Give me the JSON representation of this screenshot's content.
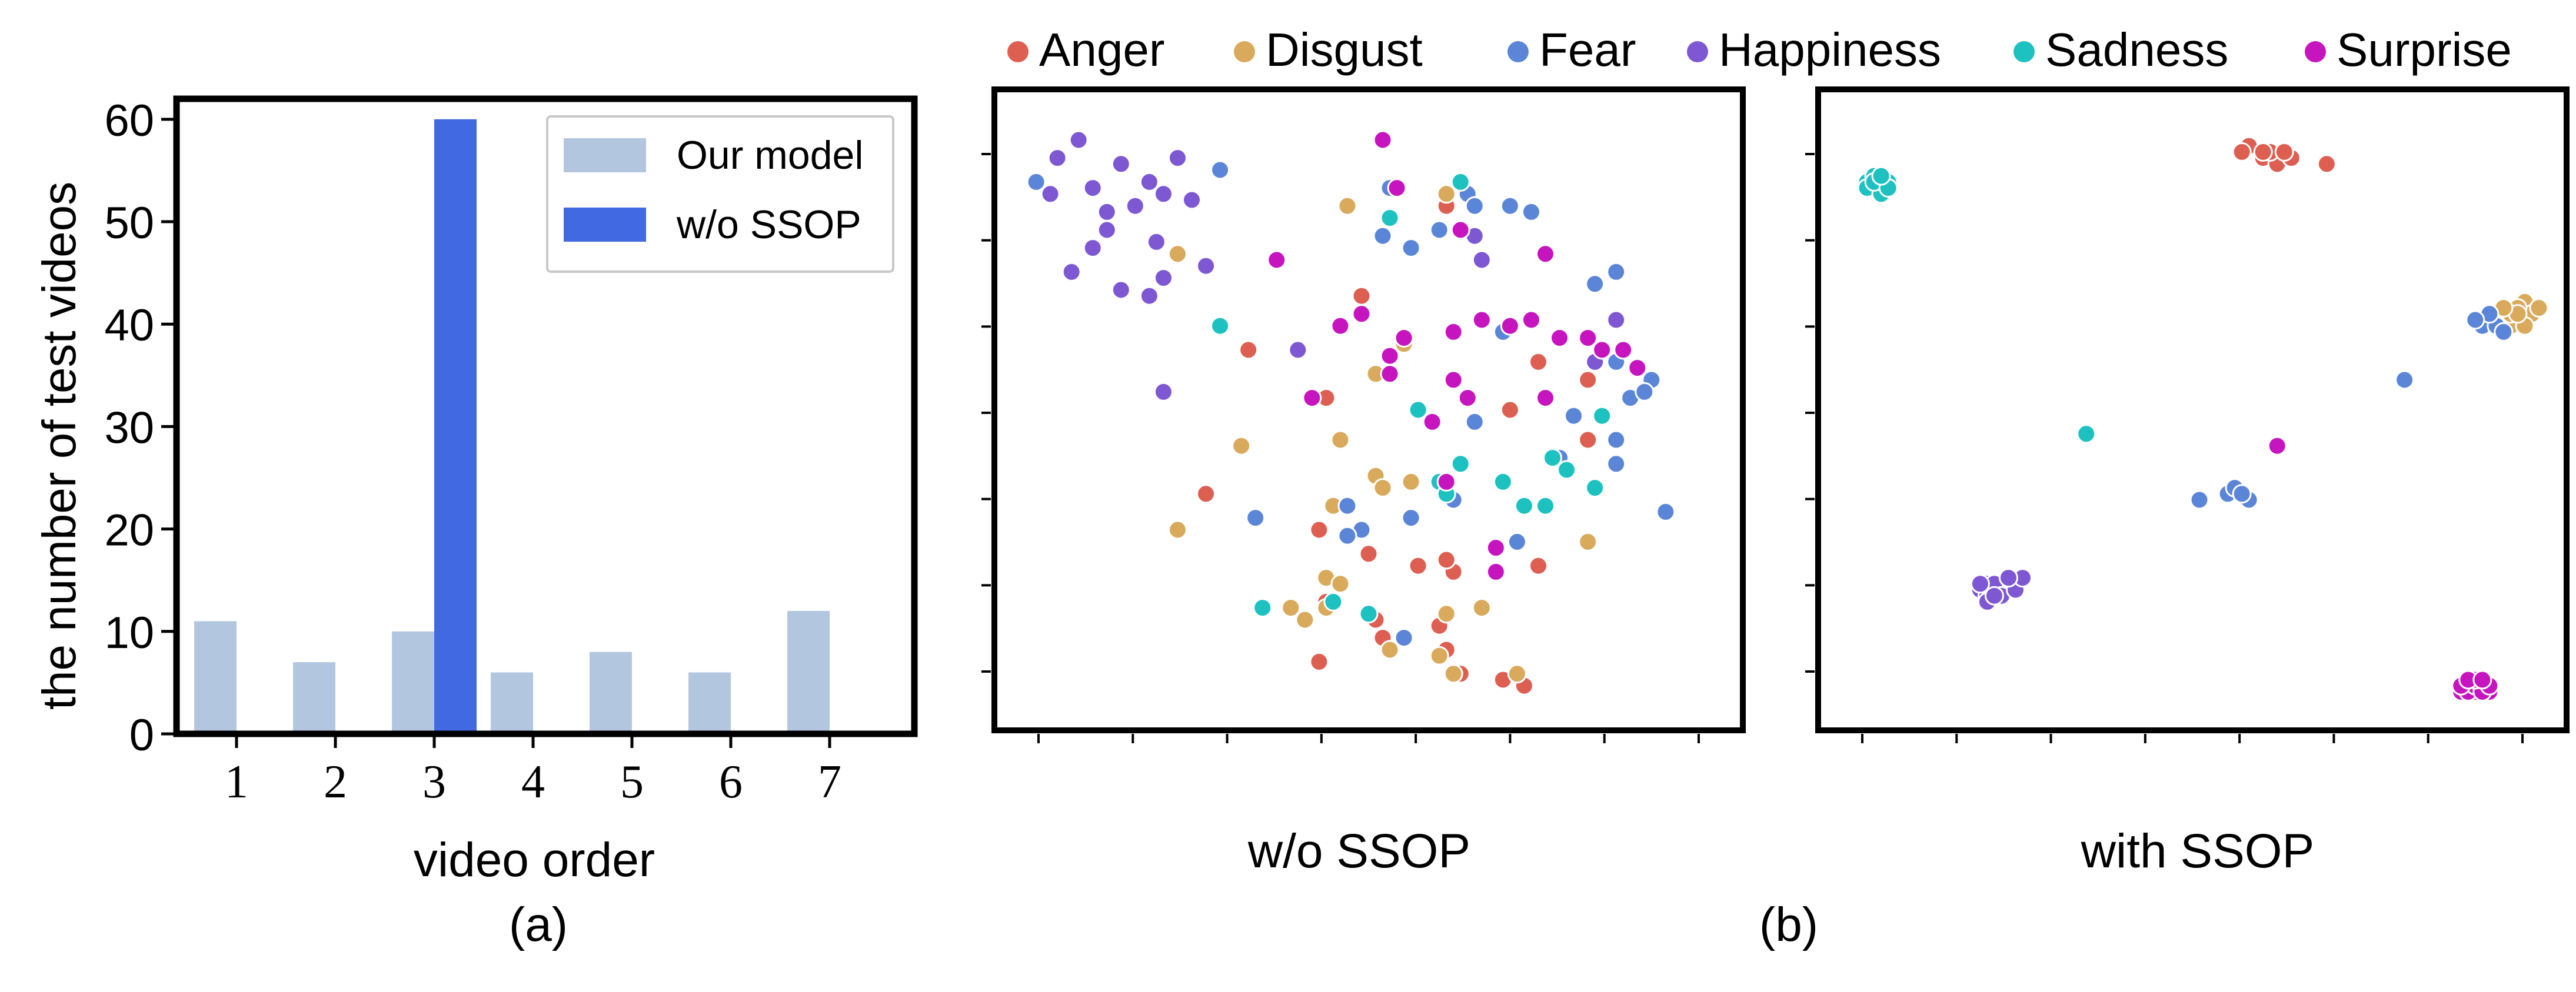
{
  "emotion_legend": {
    "items": [
      {
        "name": "Anger",
        "color": "#DD5F52"
      },
      {
        "name": "Disgust",
        "color": "#D9AA5C"
      },
      {
        "name": "Fear",
        "color": "#5B86D8"
      },
      {
        "name": "Happiness",
        "color": "#7E58D3"
      },
      {
        "name": "Sadness",
        "color": "#1DC2C0"
      },
      {
        "name": "Surprise",
        "color": "#C615BF"
      }
    ]
  },
  "captions": {
    "a": "(a)",
    "b": "(b)"
  },
  "chart_data": [
    {
      "type": "bar",
      "xlabel": "video order",
      "ylabel": "the number of test videos",
      "categories": [
        "1",
        "2",
        "3",
        "4",
        "5",
        "6",
        "7"
      ],
      "ylim": [
        0,
        62
      ],
      "yticks": [
        0,
        10,
        20,
        30,
        40,
        50,
        60
      ],
      "grid": false,
      "legend_position": "top-right",
      "series": [
        {
          "name": "Our model",
          "color": "#B3C6E0",
          "values": [
            11,
            7,
            10,
            6,
            8,
            6,
            12
          ]
        },
        {
          "name": "w/o SSOP",
          "color": "#4169E1",
          "values": [
            0,
            0,
            60,
            0,
            0,
            0,
            0
          ]
        }
      ]
    },
    {
      "type": "scatter",
      "xlabel": "w/o SSOP",
      "xlim": [
        0,
        100
      ],
      "ylim": [
        0,
        100
      ],
      "grid": false,
      "series": [
        {
          "name": "Anger",
          "color": "#DD5F52",
          "points": [
            [
              61,
              84
            ],
            [
              49,
              69
            ],
            [
              33,
              60
            ],
            [
              44,
              52
            ],
            [
              74,
              58
            ],
            [
              81,
              55
            ],
            [
              70,
              50
            ],
            [
              55,
              61
            ],
            [
              27,
              36
            ],
            [
              43,
              30
            ],
            [
              50,
              26
            ],
            [
              57,
              24
            ],
            [
              62,
              23
            ],
            [
              44,
              18
            ],
            [
              51,
              15
            ],
            [
              60,
              14
            ],
            [
              43,
              8
            ],
            [
              52,
              12
            ],
            [
              61,
              10
            ],
            [
              63,
              6
            ],
            [
              69,
              5
            ],
            [
              71,
              6
            ],
            [
              72,
              4
            ],
            [
              81,
              45
            ],
            [
              74,
              24
            ],
            [
              61,
              25
            ]
          ]
        },
        {
          "name": "Disgust",
          "color": "#D9AA5C",
          "points": [
            [
              47,
              84
            ],
            [
              61,
              86
            ],
            [
              23,
              76
            ],
            [
              55,
              61
            ],
            [
              51,
              56
            ],
            [
              32,
              44
            ],
            [
              46,
              45
            ],
            [
              51,
              39
            ],
            [
              56,
              38
            ],
            [
              45,
              34
            ],
            [
              52,
              37
            ],
            [
              23,
              30
            ],
            [
              44,
              22
            ],
            [
              46,
              21
            ],
            [
              44,
              17
            ],
            [
              39,
              17
            ],
            [
              61,
              16
            ],
            [
              41,
              15
            ],
            [
              53,
              10
            ],
            [
              60,
              9
            ],
            [
              62,
              6
            ],
            [
              71,
              6
            ],
            [
              81,
              28
            ],
            [
              66,
              17
            ]
          ]
        },
        {
          "name": "Fear",
          "color": "#5B86D8",
          "points": [
            [
              3,
              88
            ],
            [
              29,
              90
            ],
            [
              53,
              87
            ],
            [
              64,
              86
            ],
            [
              70,
              84
            ],
            [
              73,
              83
            ],
            [
              52,
              79
            ],
            [
              56,
              77
            ],
            [
              60,
              80
            ],
            [
              65,
              84
            ],
            [
              85,
              73
            ],
            [
              82,
              71
            ],
            [
              69,
              63
            ],
            [
              65,
              48
            ],
            [
              79,
              49
            ],
            [
              87,
              52
            ],
            [
              90,
              55
            ],
            [
              85,
              45
            ],
            [
              92,
              33
            ],
            [
              34,
              32
            ],
            [
              47,
              34
            ],
            [
              56,
              32
            ],
            [
              62,
              35
            ],
            [
              77,
              42
            ],
            [
              85,
              41
            ],
            [
              49,
              30
            ],
            [
              71,
              28
            ],
            [
              55,
              12
            ],
            [
              89,
              53
            ],
            [
              85,
              58
            ],
            [
              47,
              29
            ]
          ]
        },
        {
          "name": "Happiness",
          "color": "#7E58D3",
          "points": [
            [
              5,
              86
            ],
            [
              6,
              92
            ],
            [
              9,
              95
            ],
            [
              11,
              87
            ],
            [
              15,
              91
            ],
            [
              13,
              83
            ],
            [
              19,
              88
            ],
            [
              21,
              86
            ],
            [
              13,
              80
            ],
            [
              17,
              84
            ],
            [
              23,
              92
            ],
            [
              25,
              85
            ],
            [
              20,
              78
            ],
            [
              11,
              77
            ],
            [
              8,
              73
            ],
            [
              15,
              70
            ],
            [
              19,
              69
            ],
            [
              27,
              74
            ],
            [
              21,
              72
            ],
            [
              40,
              60
            ],
            [
              21,
              53
            ],
            [
              82,
              58
            ],
            [
              85,
              65
            ],
            [
              65,
              79
            ],
            [
              66,
              75
            ]
          ]
        },
        {
          "name": "Sadness",
          "color": "#1DC2C0",
          "points": [
            [
              63,
              88
            ],
            [
              53,
              82
            ],
            [
              29,
              64
            ],
            [
              57,
              50
            ],
            [
              83,
              49
            ],
            [
              76,
              42
            ],
            [
              60,
              38
            ],
            [
              63,
              41
            ],
            [
              69,
              38
            ],
            [
              72,
              34
            ],
            [
              75,
              34
            ],
            [
              78,
              40
            ],
            [
              82,
              37
            ],
            [
              61,
              36
            ],
            [
              35,
              17
            ],
            [
              45,
              18
            ],
            [
              50,
              16
            ]
          ]
        },
        {
          "name": "Surprise",
          "color": "#C615BF",
          "points": [
            [
              52,
              95
            ],
            [
              54,
              87
            ],
            [
              37,
              75
            ],
            [
              63,
              80
            ],
            [
              75,
              76
            ],
            [
              49,
              66
            ],
            [
              46,
              64
            ],
            [
              55,
              62
            ],
            [
              53,
              59
            ],
            [
              62,
              63
            ],
            [
              66,
              65
            ],
            [
              70,
              64
            ],
            [
              73,
              65
            ],
            [
              77,
              62
            ],
            [
              81,
              62
            ],
            [
              83,
              60
            ],
            [
              86,
              60
            ],
            [
              88,
              57
            ],
            [
              62,
              55
            ],
            [
              64,
              52
            ],
            [
              53,
              56
            ],
            [
              42,
              52
            ],
            [
              59,
              48
            ],
            [
              75,
              52
            ],
            [
              61,
              38
            ],
            [
              68,
              27
            ],
            [
              68,
              23
            ]
          ]
        }
      ]
    },
    {
      "type": "scatter",
      "xlabel": "with SSOP",
      "xlim": [
        0,
        100
      ],
      "ylim": [
        0,
        100
      ],
      "grid": false,
      "series": [
        {
          "name": "Anger",
          "color": "#DD5F52",
          "points": [
            [
              58,
              94
            ],
            [
              60,
              92
            ],
            [
              62,
              91
            ],
            [
              64,
              92
            ],
            [
              61,
              93
            ],
            [
              57,
              93
            ],
            [
              60,
              93
            ],
            [
              63,
              93
            ],
            [
              69,
              91
            ]
          ]
        },
        {
          "name": "Disgust",
          "color": "#D9AA5C",
          "points": [
            [
              94,
              66
            ],
            [
              96,
              65
            ],
            [
              97,
              68
            ],
            [
              95,
              64
            ],
            [
              98,
              66
            ],
            [
              93,
              66
            ],
            [
              96,
              67
            ],
            [
              97,
              64
            ],
            [
              95,
              66
            ],
            [
              99,
              67
            ],
            [
              96,
              66
            ],
            [
              94,
              67
            ]
          ]
        },
        {
          "name": "Fear",
          "color": "#5B86D8",
          "points": [
            [
              91,
              64
            ],
            [
              93,
              64
            ],
            [
              92,
              66
            ],
            [
              90,
              65
            ],
            [
              94,
              63
            ],
            [
              80,
              55
            ],
            [
              55,
              36
            ],
            [
              56,
              37
            ],
            [
              58,
              35
            ],
            [
              57,
              36
            ],
            [
              51,
              35
            ]
          ]
        },
        {
          "name": "Happiness",
          "color": "#7E58D3",
          "points": [
            [
              20,
              20
            ],
            [
              21,
              19
            ],
            [
              22,
              20
            ],
            [
              23,
              21
            ],
            [
              24,
              20
            ],
            [
              25,
              21
            ],
            [
              21,
              21
            ],
            [
              22,
              21
            ],
            [
              23,
              19
            ],
            [
              25,
              20
            ],
            [
              26,
              22
            ],
            [
              24,
              22
            ],
            [
              21,
              18
            ],
            [
              20,
              21
            ],
            [
              22,
              19
            ]
          ]
        },
        {
          "name": "Sadness",
          "color": "#1DC2C0",
          "points": [
            [
              4,
              88
            ],
            [
              5,
              87
            ],
            [
              6,
              88
            ],
            [
              5,
              89
            ],
            [
              7,
              88
            ],
            [
              4,
              87
            ],
            [
              6,
              86
            ],
            [
              5,
              88
            ],
            [
              7,
              87
            ],
            [
              6,
              89
            ],
            [
              35,
              46
            ]
          ]
        },
        {
          "name": "Surprise",
          "color": "#C615BF",
          "points": [
            [
              88,
              3
            ],
            [
              89,
              4
            ],
            [
              90,
              3
            ],
            [
              91,
              4
            ],
            [
              92,
              3
            ],
            [
              89,
              3
            ],
            [
              90,
              4
            ],
            [
              91,
              3
            ],
            [
              88,
              4
            ],
            [
              90,
              5
            ],
            [
              92,
              4
            ],
            [
              89,
              5
            ],
            [
              91,
              5
            ],
            [
              62,
              44
            ]
          ]
        }
      ]
    }
  ]
}
